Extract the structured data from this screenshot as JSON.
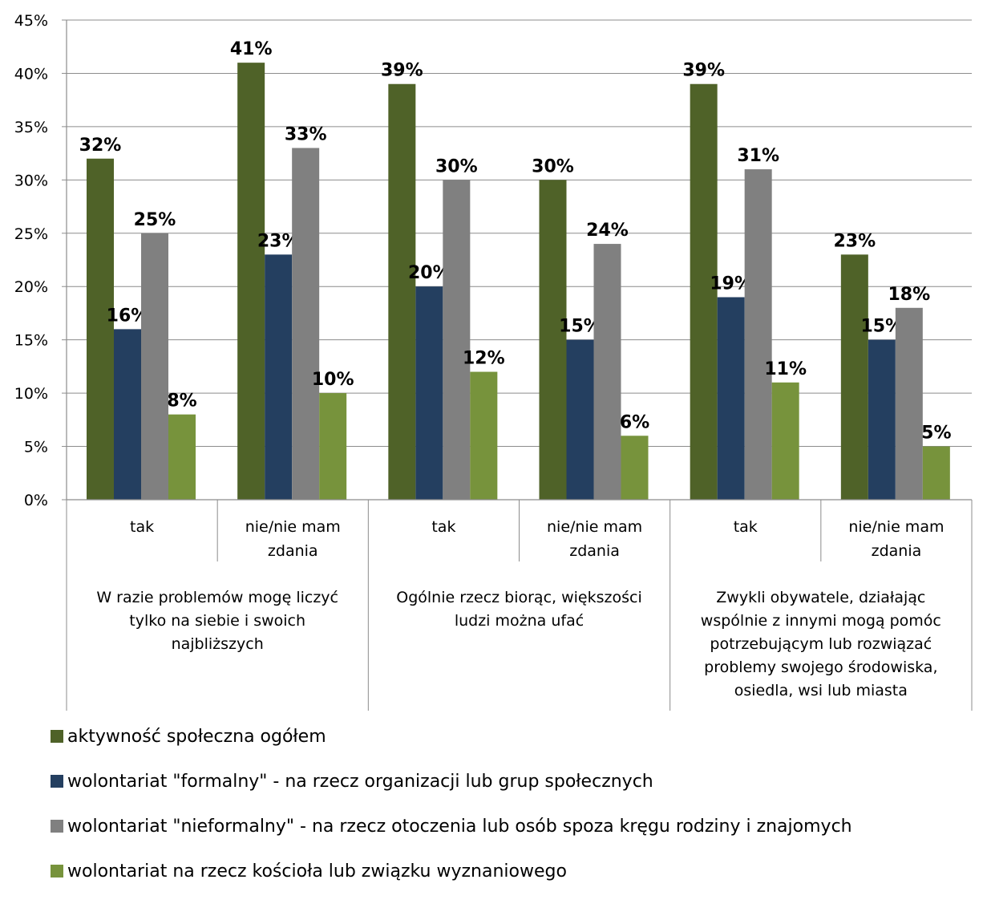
{
  "chart_data": {
    "type": "bar",
    "ylim": [
      0,
      45
    ],
    "y_ticks": [
      "0%",
      "5%",
      "10%",
      "15%",
      "20%",
      "25%",
      "30%",
      "35%",
      "40%",
      "45%"
    ],
    "grid": true,
    "legend_position": "bottom",
    "groups": [
      {
        "label": "W razie problemów mogę liczyć tylko na siebie i swoich najbliższych",
        "label_lines": [
          "W razie problemów mogę liczyć",
          "tylko na siebie i swoich",
          "najbliższych"
        ]
      },
      {
        "label": "Ogólnie rzecz biorąc, większości ludzi można ufać",
        "label_lines": [
          "Ogólnie rzecz biorąc, większości",
          "ludzi można ufać"
        ]
      },
      {
        "label": "Zwykli obywatele, działając wspólnie z innymi mogą pomóc potrzebującym lub rozwiązać problemy swojego środowiska, osiedla, wsi lub miasta",
        "label_lines": [
          "Zwykli obywatele, działając",
          "wspólnie z innymi mogą pomóc",
          "potrzebującym lub rozwiązać",
          "problemy swojego środowiska,",
          "osiedla, wsi lub miasta"
        ]
      }
    ],
    "categories": [
      {
        "label": "tak",
        "label_lines": [
          "tak"
        ]
      },
      {
        "label": "nie/nie mam zdania",
        "label_lines": [
          "nie/nie mam",
          "zdania"
        ]
      },
      {
        "label": "tak",
        "label_lines": [
          "tak"
        ]
      },
      {
        "label": "nie/nie mam zdania",
        "label_lines": [
          "nie/nie mam",
          "zdania"
        ]
      },
      {
        "label": "tak",
        "label_lines": [
          "tak"
        ]
      },
      {
        "label": "nie/nie mam zdania",
        "label_lines": [
          "nie/nie mam",
          "zdania"
        ]
      }
    ],
    "series": [
      {
        "name": "aktywność społeczna ogółem",
        "color": "#4F6228",
        "values": [
          32,
          41,
          39,
          30,
          39,
          23
        ]
      },
      {
        "name": "wolontariat \"formalny\" - na rzecz organizacji lub grup społecznych",
        "color": "#243F60",
        "values": [
          16,
          23,
          20,
          15,
          19,
          15
        ]
      },
      {
        "name": "wolontariat \"nieformalny\" - na rzecz otoczenia lub osób spoza kręgu rodziny i znajomych",
        "color": "#808080",
        "values": [
          25,
          33,
          30,
          24,
          31,
          18
        ]
      },
      {
        "name": "wolontariat na rzecz kościoła lub związku wyznaniowego",
        "color": "#77933C",
        "values": [
          8,
          10,
          12,
          6,
          11,
          5
        ]
      }
    ]
  }
}
